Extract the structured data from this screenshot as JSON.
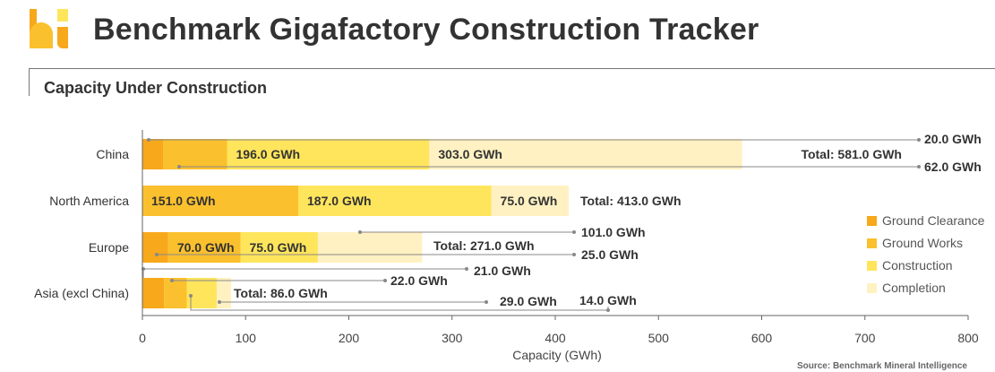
{
  "header": {
    "title": "Benchmark Gigafactory Construction Tracker",
    "logo_icon": "benchmark-logo-icon"
  },
  "panel": {
    "title": "Capacity Under Construction"
  },
  "source": "Source: Benchmark Mineral Intelligence",
  "colors": {
    "ground_clearance": "#f7a81b",
    "ground_works": "#fbc02d",
    "construction": "#ffe55c",
    "completion": "#fff1c2",
    "axis": "#666666",
    "callout": "#888888",
    "title": "#333333"
  },
  "chart_data": {
    "type": "bar",
    "orientation": "horizontal",
    "stacked": true,
    "categories": [
      "China",
      "North America",
      "Europe",
      "Asia (excl China)"
    ],
    "series": [
      {
        "name": "Ground Clearance",
        "values": [
          20,
          0,
          25,
          21
        ]
      },
      {
        "name": "Ground Works",
        "values": [
          62,
          151,
          70,
          22
        ]
      },
      {
        "name": "Construction",
        "values": [
          196,
          187,
          75,
          29
        ]
      },
      {
        "name": "Completion",
        "values": [
          303,
          75,
          101,
          14
        ]
      }
    ],
    "totals": [
      581,
      413,
      271,
      86
    ],
    "inner_labels": [
      [
        "",
        "",
        "196.0 GWh",
        "303.0 GWh"
      ],
      [
        "",
        "151.0 GWh",
        "187.0 GWh",
        "75.0 GWh"
      ],
      [
        "",
        "70.0 GWh",
        "75.0 GWh",
        ""
      ],
      [
        "",
        "",
        "",
        ""
      ]
    ],
    "total_labels": [
      "Total: 581.0 GWh",
      "Total: 413.0 GWh",
      "Total: 271.0 GWh",
      "Total: 86.0 GWh"
    ],
    "callouts": [
      {
        "label": "20.0 GWh"
      },
      {
        "label": "62.0 GWh"
      },
      {
        "label": "101.0 GWh"
      },
      {
        "label": "25.0 GWh"
      },
      {
        "label": "21.0 GWh"
      },
      {
        "label": "22.0 GWh"
      },
      {
        "label": "29.0 GWh"
      },
      {
        "label": "14.0 GWh"
      }
    ],
    "xlabel": "Capacity (GWh)",
    "ylabel": "",
    "xlim": [
      0,
      800
    ],
    "xticks": [
      "0",
      "100",
      "200",
      "300",
      "400",
      "500",
      "600",
      "700",
      "800"
    ],
    "grid": false,
    "legend_position": "right"
  }
}
